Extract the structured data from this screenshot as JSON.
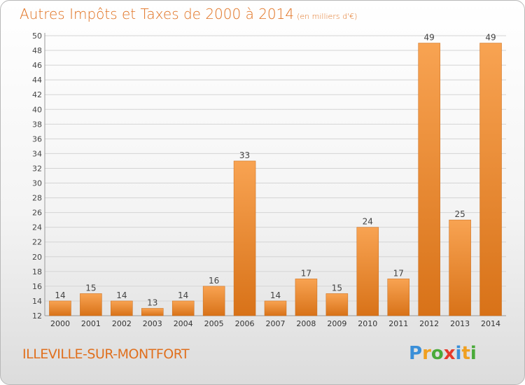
{
  "header": {
    "title": "Autres Impôts et Taxes de 2000 à 2014",
    "subtitle": "(en milliers d'€)"
  },
  "footer": {
    "city": "ILLEVILLE-SUR-MONTFORT",
    "brand_letters": [
      {
        "ch": "P",
        "color": "#3a8fd8"
      },
      {
        "ch": "r",
        "color": "#f0a020"
      },
      {
        "ch": "o",
        "color": "#4aaa3a"
      },
      {
        "ch": "x",
        "color": "#e63a2a"
      },
      {
        "ch": "i",
        "color": "#3a8fd8"
      },
      {
        "ch": "t",
        "color": "#f0a020"
      },
      {
        "ch": "i",
        "color": "#4aaa3a"
      }
    ]
  },
  "colors": {
    "bar_light": "#f8a352",
    "bar_dark": "#d87218",
    "accent": "#e0701e"
  },
  "chart_data": {
    "type": "bar",
    "categories": [
      "2000",
      "2001",
      "2002",
      "2003",
      "2004",
      "2005",
      "2006",
      "2007",
      "2008",
      "2009",
      "2010",
      "2011",
      "2012",
      "2013",
      "2014"
    ],
    "values": [
      14,
      15,
      14,
      13,
      14,
      16,
      33,
      14,
      17,
      15,
      24,
      17,
      49,
      25,
      49
    ],
    "ylim": [
      12,
      50
    ],
    "yticks": [
      12,
      14,
      16,
      18,
      20,
      22,
      24,
      26,
      28,
      30,
      32,
      34,
      36,
      38,
      40,
      42,
      44,
      46,
      48,
      50
    ],
    "grid": true
  }
}
